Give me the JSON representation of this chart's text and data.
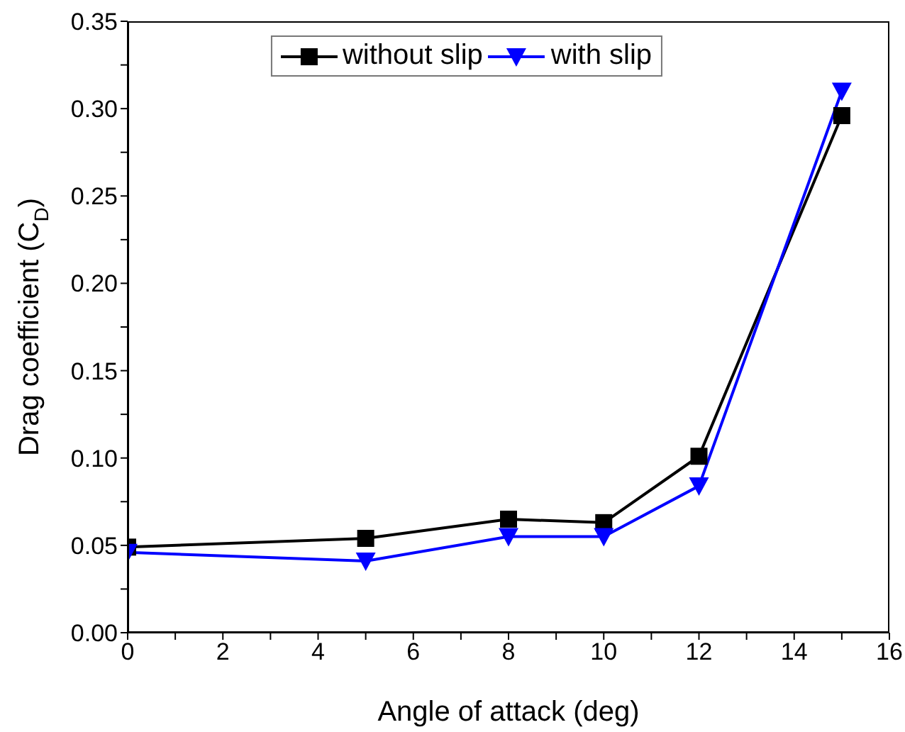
{
  "chart_data": {
    "type": "line",
    "xlabel": "Angle of attack (deg)",
    "ylabel": "Drag coefficient (C$_{D}$)",
    "x": [
      0,
      5,
      8,
      10,
      12,
      15
    ],
    "series": [
      {
        "name": "without slip",
        "color": "#000000",
        "marker": "square",
        "values": [
          0.049,
          0.054,
          0.065,
          0.063,
          0.101,
          0.296
        ]
      },
      {
        "name": "with slip",
        "color": "#0000ff",
        "marker": "triangle",
        "values": [
          0.046,
          0.041,
          0.055,
          0.055,
          0.084,
          0.31
        ]
      }
    ],
    "xlim": [
      0,
      16
    ],
    "xticks": [
      0,
      {
        "value": 1,
        "label": null
      },
      2,
      {
        "value": 3,
        "label": null
      },
      4,
      {
        "value": 5,
        "label": null
      },
      6,
      {
        "value": 7,
        "label": null
      },
      8,
      {
        "value": 9,
        "label": null
      },
      10,
      {
        "value": 11,
        "label": null
      },
      12,
      {
        "value": 13,
        "label": null
      },
      14,
      {
        "value": 15,
        "label": null
      },
      16
    ],
    "ylim": [
      0,
      0.35
    ],
    "yticks": [
      {
        "value": 0,
        "label": "0.00"
      },
      {
        "value": 0.025,
        "label": null
      },
      {
        "value": 0.05,
        "label": "0.05"
      },
      {
        "value": 0.075,
        "label": null
      },
      {
        "value": 0.1,
        "label": "0.10"
      },
      {
        "value": 0.125,
        "label": null
      },
      {
        "value": 0.15,
        "label": "0.15"
      },
      {
        "value": 0.175,
        "label": null
      },
      {
        "value": 0.2,
        "label": "0.20"
      },
      {
        "value": 0.225,
        "label": null
      },
      {
        "value": 0.25,
        "label": "0.25"
      },
      {
        "value": 0.275,
        "label": null
      },
      {
        "value": 0.3,
        "label": "0.30"
      },
      {
        "value": 0.325,
        "label": null
      },
      {
        "value": 0.35,
        "label": "0.35"
      }
    ],
    "grid": false,
    "legend": "top",
    "line_style": "solid"
  }
}
